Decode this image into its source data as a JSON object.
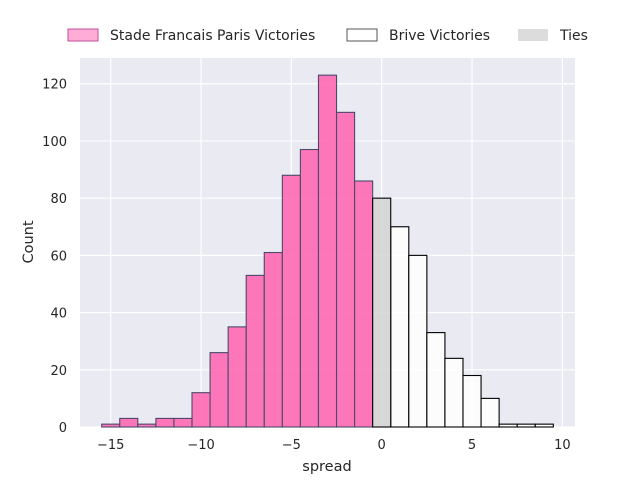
{
  "chart_data": {
    "type": "bar",
    "subtype": "histogram",
    "xlabel": "spread",
    "ylabel": "Count",
    "xlim": [
      -16.7,
      10.7
    ],
    "ylim": [
      0,
      129
    ],
    "xticks": [
      -15,
      -10,
      -5,
      0,
      5,
      10
    ],
    "yticks": [
      0,
      20,
      40,
      60,
      80,
      100,
      120
    ],
    "xtick_labels": [
      "−15",
      "−10",
      "−5",
      "0",
      "5",
      "10"
    ],
    "ytick_labels": [
      "0",
      "20",
      "40",
      "60",
      "80",
      "100",
      "120"
    ],
    "grid": true,
    "legend_position": "top, above plot",
    "bin_width": 1,
    "series": [
      {
        "name": "Stade Francais Paris Victories",
        "color": "#ff69b4",
        "edge_color": "#4a4a6a",
        "bins": [
          {
            "x0": -15.5,
            "count": 1
          },
          {
            "x0": -14.5,
            "count": 3
          },
          {
            "x0": -13.5,
            "count": 1
          },
          {
            "x0": -12.5,
            "count": 3
          },
          {
            "x0": -11.5,
            "count": 3
          },
          {
            "x0": -10.5,
            "count": 12
          },
          {
            "x0": -9.5,
            "count": 26
          },
          {
            "x0": -8.5,
            "count": 35
          },
          {
            "x0": -7.5,
            "count": 53
          },
          {
            "x0": -6.5,
            "count": 61
          },
          {
            "x0": -5.5,
            "count": 88
          },
          {
            "x0": -4.5,
            "count": 97
          },
          {
            "x0": -3.5,
            "count": 123
          },
          {
            "x0": -2.5,
            "count": 110
          },
          {
            "x0": -1.5,
            "count": 86
          }
        ]
      },
      {
        "name": "Brive Victories",
        "color": "#ffffff",
        "edge_color": "#000000",
        "bins": [
          {
            "x0": 0.5,
            "count": 70
          },
          {
            "x0": 1.5,
            "count": 60
          },
          {
            "x0": 2.5,
            "count": 33
          },
          {
            "x0": 3.5,
            "count": 24
          },
          {
            "x0": 4.5,
            "count": 18
          },
          {
            "x0": 5.5,
            "count": 10
          },
          {
            "x0": 6.5,
            "count": 1
          },
          {
            "x0": 7.5,
            "count": 1
          },
          {
            "x0": 8.5,
            "count": 1
          }
        ]
      },
      {
        "name": "Ties",
        "color": "#d3d3d3",
        "edge_color": "#000000",
        "bins": [
          {
            "x0": -0.5,
            "count": 80
          }
        ]
      }
    ]
  }
}
